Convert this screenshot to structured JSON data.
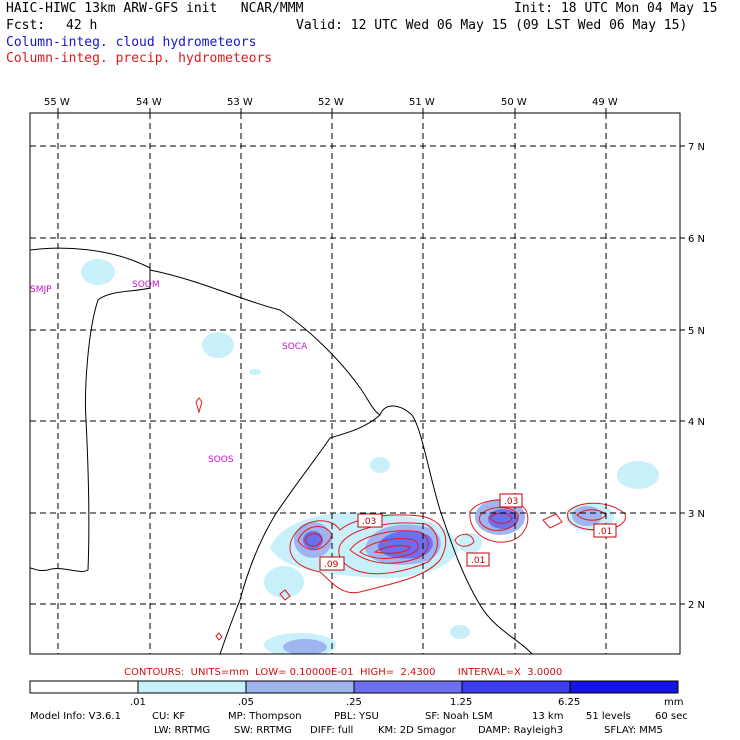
{
  "header": {
    "title": "HAIC-HIWC 13km ARW-GFS init   NCAR/MMM",
    "fcst_label": "Fcst:",
    "fcst_value": "42 h",
    "init": "Init: 18 UTC Mon 04 May 15",
    "valid": "Valid: 12 UTC Wed 06 May 15 (09 LST Wed 06 May 15)",
    "field_cloud": "Column-integ. cloud hydrometeors",
    "field_precip": "Column-integ. precip. hydrometeors"
  },
  "colors": {
    "cloud": "#1414d2",
    "precip": "#e01a1a",
    "station": "#cc10cc",
    "shade": [
      "#ffffff",
      "#c8f0fa",
      "#a0b4f0",
      "#6e6ef0",
      "#3c3cf0",
      "#1414e6"
    ]
  },
  "map": {
    "lon_labels": [
      "55 W",
      "54 W",
      "53 W",
      "52 W",
      "51 W",
      "50 W",
      "49 W"
    ],
    "lat_labels": [
      "7 N",
      "6 N",
      "5 N",
      "4 N",
      "3 N",
      "2 N"
    ],
    "stations": [
      "SMJP",
      "SOOM",
      "SOCA",
      "SOOS"
    ],
    "contour_labels": [
      ".03",
      ".09",
      ".03",
      ".01",
      ".01"
    ]
  },
  "contours_info": {
    "contours": "CONTOURS:",
    "units": "UNITS=mm",
    "low": "LOW= 0.10000E-01",
    "high": "HIGH=  2.4300",
    "interval": "INTERVAL=X  3.0000"
  },
  "colorbar": {
    "labels": [
      ".01",
      ".05",
      ".25",
      "1.25",
      "6.25"
    ],
    "units": "mm"
  },
  "footer": {
    "line1": [
      "Model Info: V3.6.1",
      "CU: KF",
      "MP: Thompson",
      "PBL: YSU",
      "SF: Noah LSM",
      "13 km",
      "51 levels",
      "60 sec"
    ],
    "line2": [
      "LW: RRTMG",
      "SW: RRTMG",
      "DIFF: full",
      "KM: 2D Smagor",
      "DAMP: Rayleigh3",
      "SFLAY: MM5"
    ]
  }
}
